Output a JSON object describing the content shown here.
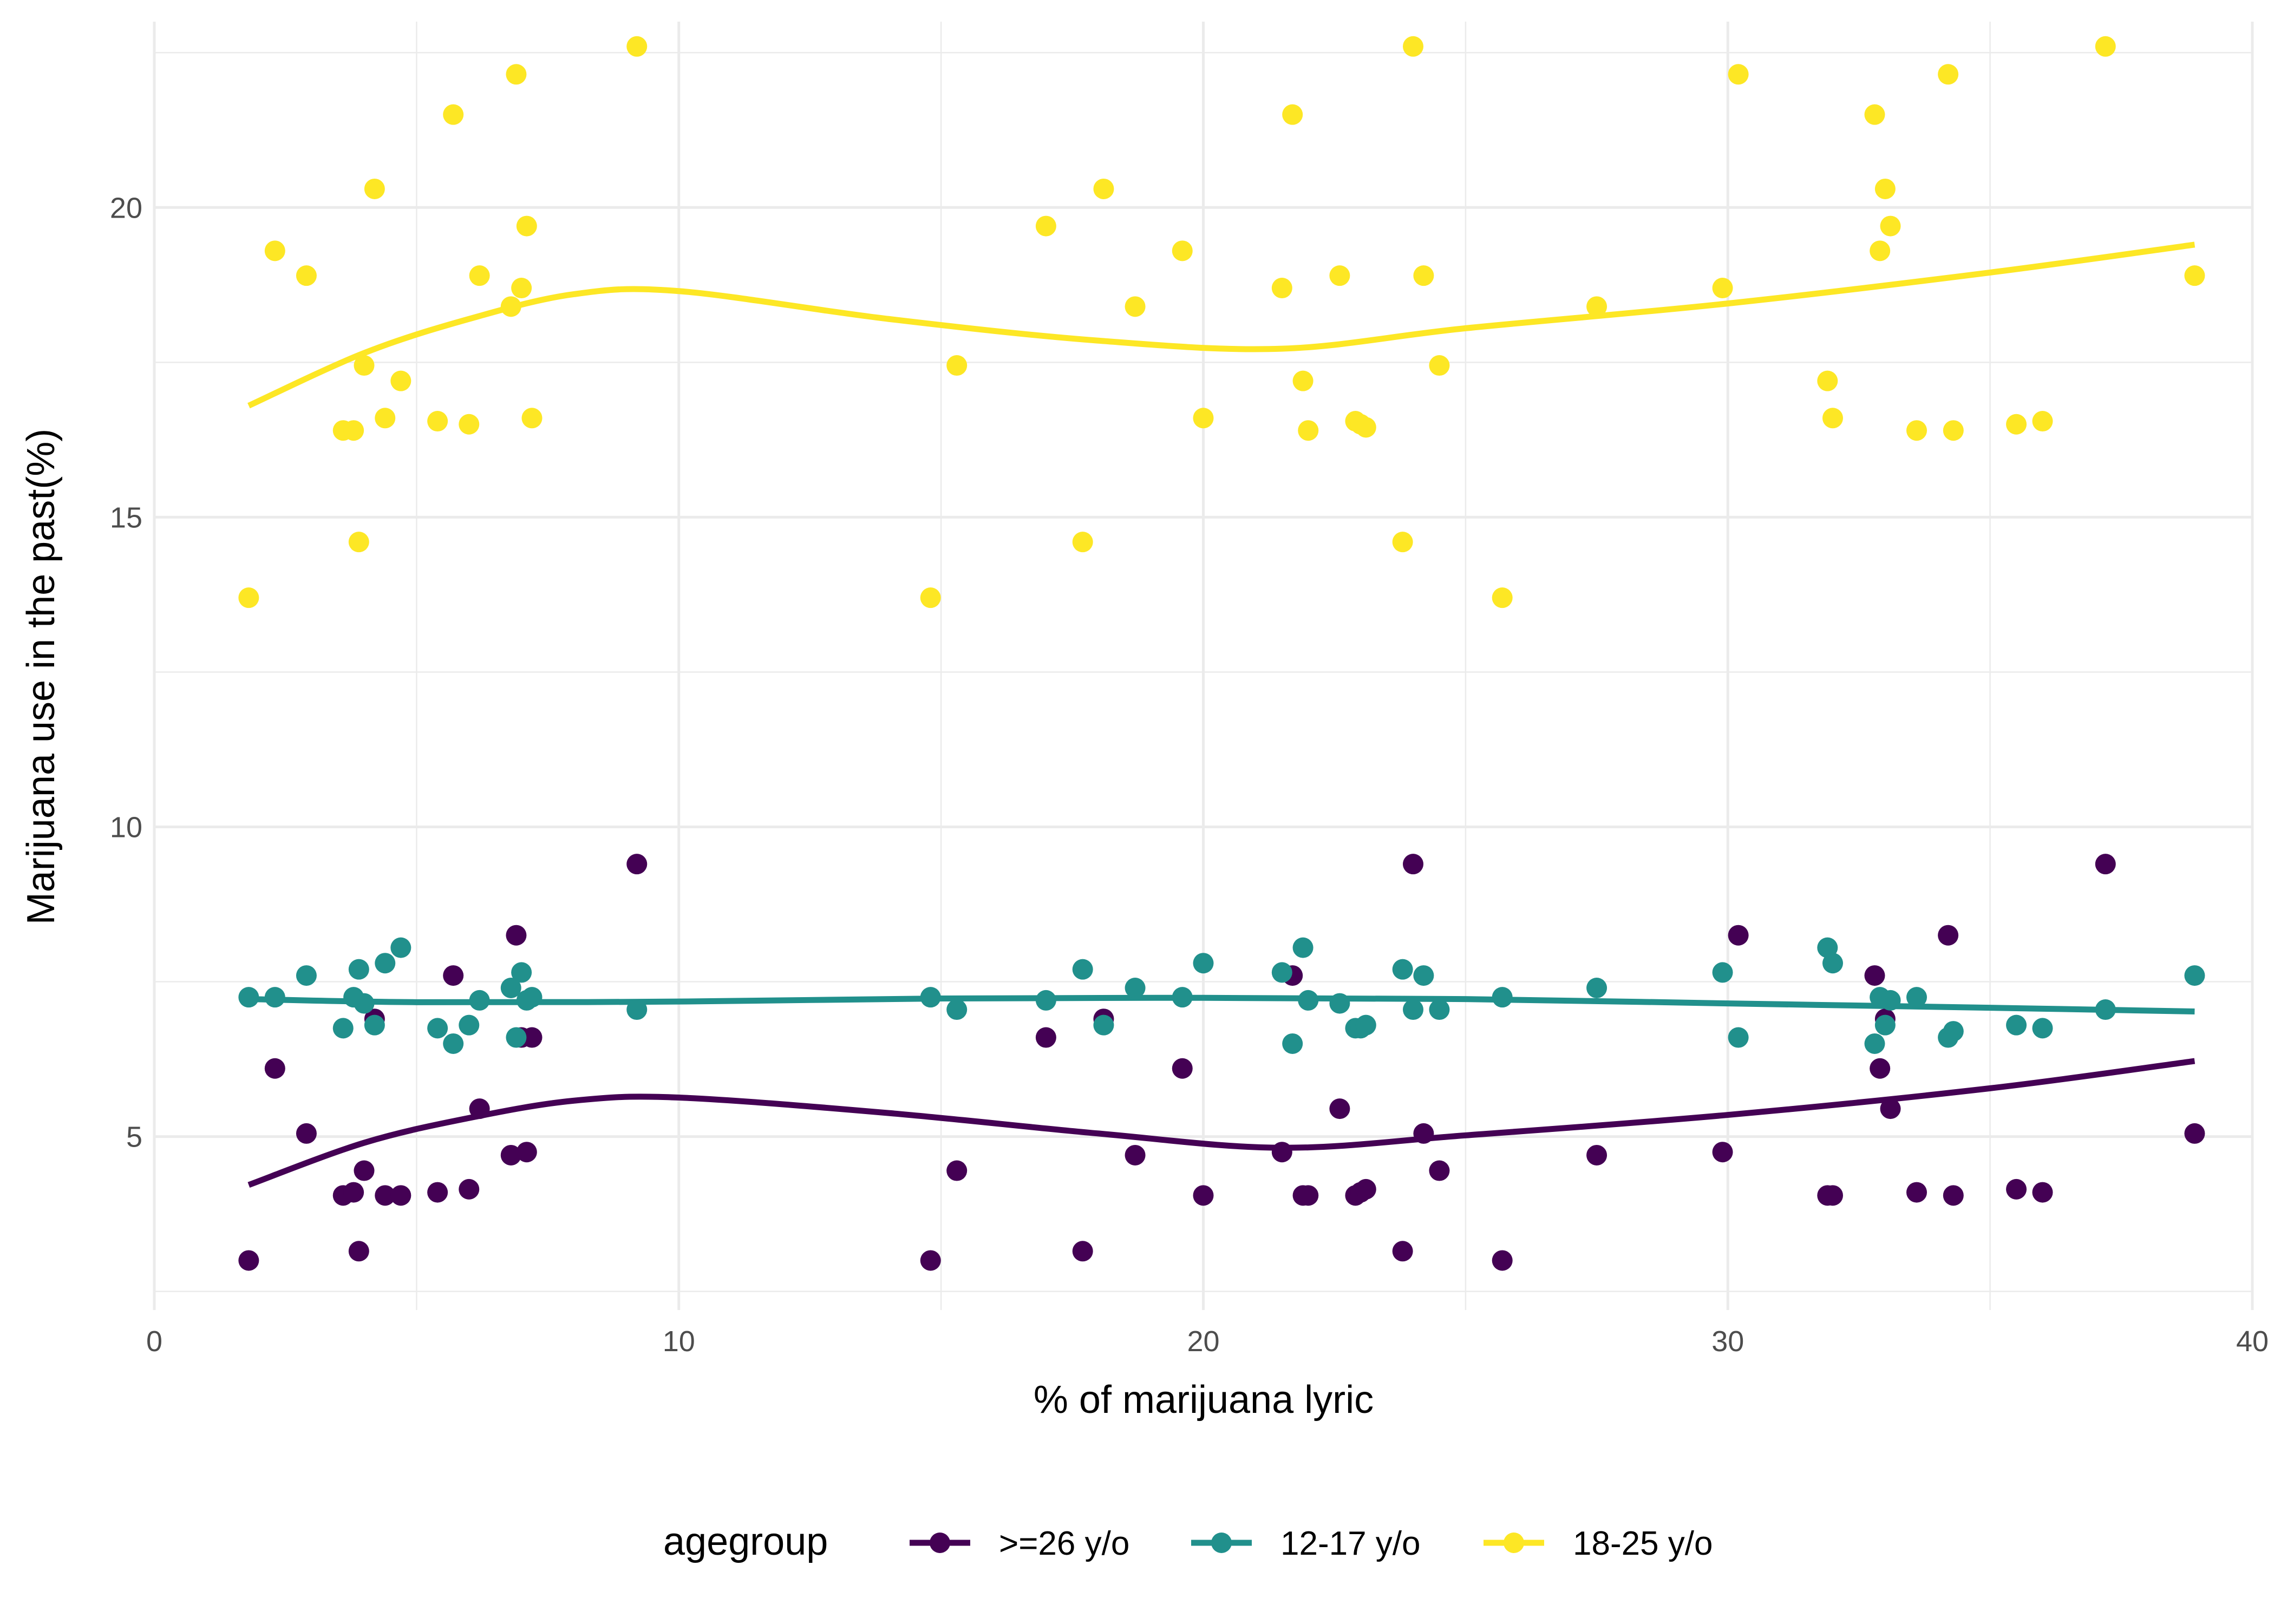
{
  "chart_data": {
    "type": "scatter",
    "xlabel": "% of marijuana lyric",
    "ylabel": "Marijuana use in the past(%)",
    "xlim": [
      0,
      40
    ],
    "ylim": [
      2.2,
      23
    ],
    "x_ticks": [
      "0",
      "10",
      "20",
      "30",
      "40"
    ],
    "y_ticks": [
      "5",
      "10",
      "15",
      "20"
    ],
    "x_tick_values": [
      0,
      10,
      20,
      30,
      40
    ],
    "y_tick_values": [
      5,
      10,
      15,
      20
    ],
    "grid": true,
    "legend": {
      "title": "agegroup",
      "position": "bottom"
    },
    "x": [
      1.8,
      2.3,
      2.9,
      3.6,
      3.8,
      3.9,
      4.0,
      4.2,
      4.4,
      4.7,
      5.4,
      5.7,
      6.0,
      6.2,
      6.8,
      6.9,
      7.0,
      7.1,
      7.2,
      9.2,
      14.8,
      15.3,
      17.0,
      17.7,
      18.1,
      18.7,
      19.6,
      20.0,
      21.5,
      21.7,
      21.9,
      22.0,
      22.6,
      22.9,
      23.0,
      23.1,
      23.8,
      24.0,
      24.2,
      24.5,
      25.7,
      27.5,
      29.9,
      30.2,
      31.9,
      32.0,
      32.8,
      32.9,
      33.0,
      33.1,
      33.6,
      34.2,
      34.3,
      35.5,
      36.0,
      37.2,
      38.9
    ],
    "series": [
      {
        "name": ">=26 y/o",
        "color": "#440154",
        "y": [
          3.0,
          6.1,
          5.05,
          4.05,
          4.1,
          3.15,
          4.45,
          6.9,
          4.05,
          4.05,
          4.1,
          7.6,
          4.15,
          5.45,
          4.7,
          8.25,
          6.6,
          4.75,
          6.6,
          9.4,
          3.0,
          4.45,
          6.6,
          3.15,
          6.9,
          4.7,
          6.1,
          4.05,
          4.75,
          7.6,
          4.05,
          4.05,
          5.45,
          4.05,
          4.1,
          4.15,
          3.15,
          9.4,
          5.05,
          4.45,
          3.0,
          4.7,
          4.75,
          8.25,
          4.05,
          4.05,
          7.6,
          6.1,
          6.9,
          5.45,
          4.1,
          8.25,
          4.05,
          4.15,
          4.1,
          9.4,
          5.05
        ],
        "trend": [
          [
            1.8,
            4.22
          ],
          [
            4.0,
            4.9
          ],
          [
            6.0,
            5.3
          ],
          [
            8.0,
            5.58
          ],
          [
            10.0,
            5.63
          ],
          [
            14.0,
            5.38
          ],
          [
            18.0,
            5.05
          ],
          [
            21.5,
            4.82
          ],
          [
            25.0,
            5.02
          ],
          [
            30.0,
            5.35
          ],
          [
            35.0,
            5.78
          ],
          [
            38.9,
            6.22
          ]
        ]
      },
      {
        "name": "12-17 y/o",
        "color": "#21908C",
        "y": [
          7.25,
          7.25,
          7.6,
          6.75,
          7.25,
          7.7,
          7.15,
          6.8,
          7.8,
          8.05,
          6.75,
          6.5,
          6.8,
          7.2,
          7.4,
          6.6,
          7.65,
          7.2,
          7.25,
          7.05,
          7.25,
          7.05,
          7.2,
          7.7,
          6.8,
          7.4,
          7.25,
          7.8,
          7.65,
          6.5,
          8.05,
          7.2,
          7.15,
          6.75,
          6.75,
          6.8,
          7.7,
          7.05,
          7.6,
          7.05,
          7.25,
          7.4,
          7.65,
          6.6,
          8.05,
          7.8,
          6.5,
          7.25,
          6.8,
          7.2,
          7.25,
          6.6,
          6.7,
          6.8,
          6.75,
          7.05,
          7.6
        ],
        "trend": [
          [
            1.8,
            7.22
          ],
          [
            5.0,
            7.17
          ],
          [
            10.0,
            7.18
          ],
          [
            15.0,
            7.23
          ],
          [
            20.0,
            7.24
          ],
          [
            25.0,
            7.22
          ],
          [
            30.0,
            7.15
          ],
          [
            35.0,
            7.08
          ],
          [
            38.9,
            7.02
          ]
        ]
      },
      {
        "name": "18-25 y/o",
        "color": "#FDE725",
        "y": [
          13.7,
          19.3,
          18.9,
          16.4,
          16.4,
          14.6,
          17.45,
          20.3,
          16.6,
          17.2,
          16.55,
          21.5,
          16.5,
          18.9,
          18.4,
          22.15,
          18.7,
          19.7,
          16.6,
          22.6,
          13.7,
          17.45,
          19.7,
          14.6,
          20.3,
          18.4,
          19.3,
          16.6,
          18.7,
          21.5,
          17.2,
          16.4,
          18.9,
          16.55,
          16.5,
          16.45,
          14.6,
          22.6,
          18.9,
          17.45,
          13.7,
          18.4,
          18.7,
          22.15,
          17.2,
          16.6,
          21.5,
          19.3,
          20.3,
          19.7,
          16.4,
          22.15,
          16.4,
          16.5,
          16.55,
          22.6,
          18.9
        ],
        "trend": [
          [
            1.8,
            16.8
          ],
          [
            4.0,
            17.65
          ],
          [
            6.0,
            18.2
          ],
          [
            8.0,
            18.6
          ],
          [
            10.0,
            18.65
          ],
          [
            14.0,
            18.2
          ],
          [
            18.0,
            17.85
          ],
          [
            21.5,
            17.72
          ],
          [
            25.0,
            18.05
          ],
          [
            30.0,
            18.45
          ],
          [
            35.0,
            18.95
          ],
          [
            38.9,
            19.4
          ]
        ]
      }
    ]
  }
}
